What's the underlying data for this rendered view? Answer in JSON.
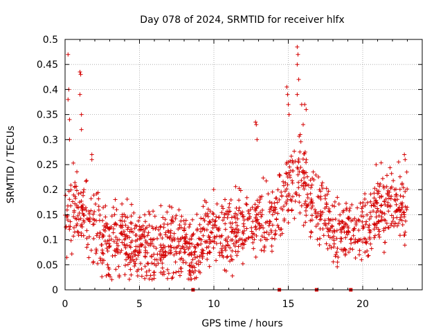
{
  "chart_data": {
    "type": "scatter",
    "title": "Day 078 of 2024, SRMTID for receiver hlfx",
    "xlabel": "GPS time / hours",
    "ylabel": "SRMTID / TECUs",
    "xlim": [
      0,
      24
    ],
    "ylim": [
      0,
      0.5
    ],
    "xticks": [
      0,
      5,
      10,
      15,
      20
    ],
    "yticks": [
      0,
      0.05,
      0.1,
      0.15,
      0.2,
      0.25,
      0.3,
      0.35,
      0.4,
      0.45,
      0.5
    ],
    "xtick_labels": [
      "0",
      "5",
      "10",
      "15",
      "20"
    ],
    "ytick_labels": [
      "0",
      "0.05",
      "0.1",
      "0.15",
      "0.2",
      "0.25",
      "0.3",
      "0.35",
      "0.4",
      "0.45",
      "0.5"
    ],
    "grid": true,
    "marker": "+",
    "color": "#d40000",
    "baseline_markers_x": [
      8.6,
      14.4,
      16.9,
      19.2
    ],
    "series": [
      {
        "name": "SRMTID",
        "profile": [
          [
            0.0,
            0.13
          ],
          [
            0.5,
            0.17
          ],
          [
            1.0,
            0.16
          ],
          [
            1.5,
            0.15
          ],
          [
            2.0,
            0.13
          ],
          [
            2.5,
            0.1
          ],
          [
            3.0,
            0.1
          ],
          [
            3.5,
            0.11
          ],
          [
            4.0,
            0.1
          ],
          [
            4.5,
            0.09
          ],
          [
            5.0,
            0.09
          ],
          [
            5.5,
            0.08
          ],
          [
            6.0,
            0.085
          ],
          [
            6.5,
            0.08
          ],
          [
            7.0,
            0.09
          ],
          [
            7.5,
            0.09
          ],
          [
            8.0,
            0.08
          ],
          [
            8.5,
            0.06
          ],
          [
            9.0,
            0.08
          ],
          [
            9.5,
            0.12
          ],
          [
            10.0,
            0.12
          ],
          [
            10.5,
            0.11
          ],
          [
            11.0,
            0.11
          ],
          [
            11.5,
            0.12
          ],
          [
            12.0,
            0.12
          ],
          [
            12.5,
            0.14
          ],
          [
            13.0,
            0.15
          ],
          [
            13.5,
            0.13
          ],
          [
            14.0,
            0.15
          ],
          [
            14.5,
            0.16
          ],
          [
            15.0,
            0.2
          ],
          [
            15.5,
            0.23
          ],
          [
            16.0,
            0.22
          ],
          [
            16.5,
            0.18
          ],
          [
            17.0,
            0.17
          ],
          [
            17.5,
            0.15
          ],
          [
            18.0,
            0.13
          ],
          [
            18.5,
            0.13
          ],
          [
            19.0,
            0.12
          ],
          [
            19.5,
            0.11
          ],
          [
            20.0,
            0.12
          ],
          [
            20.5,
            0.14
          ],
          [
            21.0,
            0.16
          ],
          [
            21.5,
            0.17
          ],
          [
            22.0,
            0.17
          ],
          [
            22.5,
            0.17
          ],
          [
            23.0,
            0.17
          ]
        ],
        "spread": 0.035,
        "outliers": [
          [
            0.2,
            0.47
          ],
          [
            0.25,
            0.4
          ],
          [
            0.2,
            0.38
          ],
          [
            0.3,
            0.34
          ],
          [
            0.3,
            0.3
          ],
          [
            1.0,
            0.435
          ],
          [
            1.05,
            0.43
          ],
          [
            1.0,
            0.39
          ],
          [
            1.1,
            0.35
          ],
          [
            1.1,
            0.32
          ],
          [
            1.8,
            0.27
          ],
          [
            1.8,
            0.26
          ],
          [
            12.8,
            0.335
          ],
          [
            12.85,
            0.33
          ],
          [
            12.9,
            0.3
          ],
          [
            14.9,
            0.405
          ],
          [
            14.95,
            0.39
          ],
          [
            15.0,
            0.37
          ],
          [
            15.05,
            0.35
          ],
          [
            15.6,
            0.485
          ],
          [
            15.65,
            0.47
          ],
          [
            15.6,
            0.45
          ],
          [
            15.7,
            0.42
          ],
          [
            15.6,
            0.39
          ],
          [
            15.9,
            0.37
          ],
          [
            16.1,
            0.37
          ],
          [
            16.2,
            0.36
          ],
          [
            16.0,
            0.33
          ],
          [
            15.8,
            0.31
          ],
          [
            22.8,
            0.27
          ],
          [
            22.85,
            0.26
          ],
          [
            20.9,
            0.25
          ]
        ]
      }
    ]
  }
}
